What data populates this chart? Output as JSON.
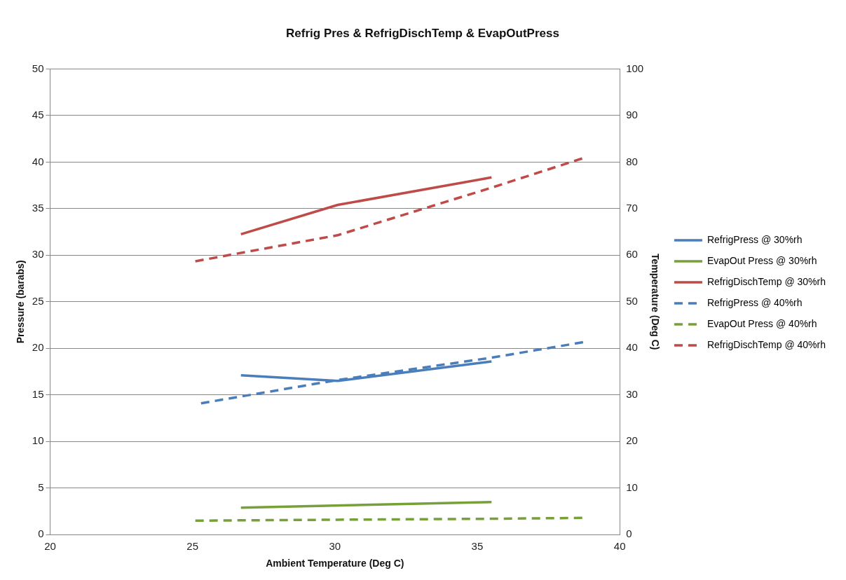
{
  "chart_data": {
    "type": "line",
    "title": "Refrig Pres & RefrigDischTemp & EvapOutPress",
    "xlabel": "Ambient Temperature (Deg C)",
    "ylabel": "Pressure (barabs)",
    "y2label": "Temperature (Deg C)",
    "xlim": [
      20,
      40
    ],
    "xticks": [
      20,
      25,
      30,
      35,
      40
    ],
    "ylim": [
      0,
      50
    ],
    "yticks": [
      0,
      5,
      10,
      15,
      20,
      25,
      30,
      35,
      40,
      45,
      50
    ],
    "y2lim": [
      0,
      100
    ],
    "y2ticks": [
      0,
      10,
      20,
      30,
      40,
      50,
      60,
      70,
      80,
      90,
      100
    ],
    "grid": "y",
    "legend": "right",
    "marker": "none",
    "series": [
      {
        "name": "RefrigPress @ 30%rh",
        "color": "#4a7ebb",
        "line_style": "solid",
        "x": [
          26.7,
          30.1,
          35.5
        ],
        "values": [
          17.1,
          16.5,
          18.6
        ]
      },
      {
        "name": "EvapOut Press @ 30%rh",
        "color": "#77a03a",
        "line_style": "solid",
        "x": [
          26.7,
          35.5
        ],
        "values": [
          2.9,
          3.5
        ]
      },
      {
        "name": "RefrigDischTemp @ 30%rh",
        "color": "#be4b48",
        "line_style": "solid",
        "axis": "y2",
        "x": [
          26.7,
          30.1,
          35.5
        ],
        "values": [
          64.5,
          70.8,
          76.7
        ]
      },
      {
        "name": "RefrigPress @ 40%rh",
        "color": "#4a7ebb",
        "line_style": "dashed",
        "x": [
          25.3,
          30.1,
          35.5,
          38.8
        ],
        "values": [
          14.1,
          16.6,
          19.0,
          20.7
        ]
      },
      {
        "name": "EvapOut Press @ 40%rh",
        "color": "#77a03a",
        "line_style": "dashed",
        "x": [
          25.1,
          30.1,
          35.5,
          38.8
        ],
        "values": [
          1.5,
          1.6,
          1.7,
          1.8
        ]
      },
      {
        "name": "RefrigDischTemp @ 40%rh",
        "color": "#be4b48",
        "line_style": "dashed",
        "axis": "y2",
        "x": [
          25.1,
          30.1,
          35.5,
          38.8
        ],
        "values": [
          58.7,
          64.3,
          74.5,
          81
        ]
      }
    ]
  }
}
